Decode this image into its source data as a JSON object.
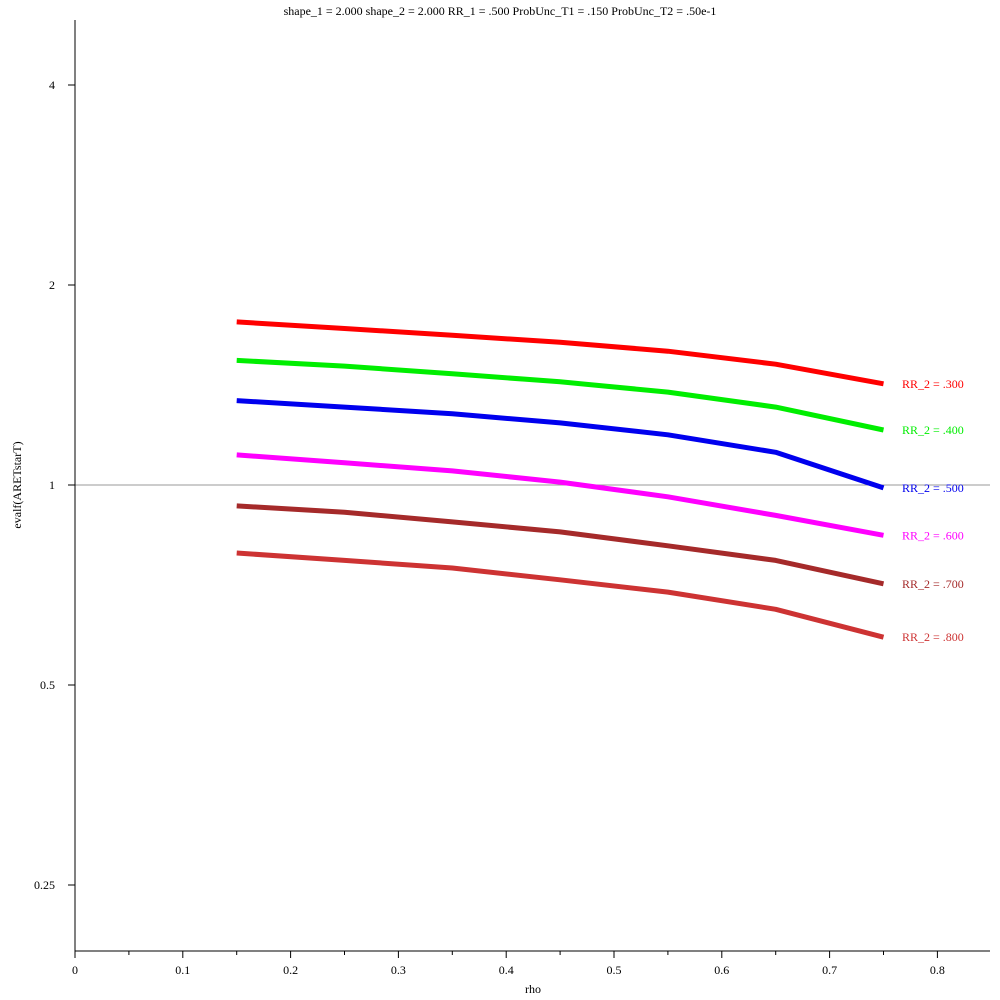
{
  "chart_data": {
    "type": "line",
    "title": "shape_1 = 2.000  shape_2 = 2.000  RR_1 = .500  ProbUnc_T1 = .150  ProbUnc_T2 = .50e-1",
    "xlabel": "rho",
    "ylabel": "evalf(ARETstarT)",
    "xlim": [
      0,
      0.85
    ],
    "ylim": [
      0.2,
      4.7
    ],
    "yscale": "log",
    "reference_line": 1,
    "grid": false,
    "xticks": [
      {
        "value": 0,
        "label": "0"
      },
      {
        "value": 0.1,
        "label": "0.1"
      },
      {
        "value": 0.2,
        "label": "0.2"
      },
      {
        "value": 0.3,
        "label": "0.3"
      },
      {
        "value": 0.4,
        "label": "0.4"
      },
      {
        "value": 0.5,
        "label": "0.5"
      },
      {
        "value": 0.6,
        "label": "0.6"
      },
      {
        "value": 0.7,
        "label": "0.7"
      },
      {
        "value": 0.8,
        "label": "0.8"
      }
    ],
    "yticks": [
      {
        "value": 0.25,
        "label": "0.25"
      },
      {
        "value": 0.5,
        "label": "0.5"
      },
      {
        "value": 1,
        "label": "1"
      },
      {
        "value": 2,
        "label": "2"
      },
      {
        "value": 4,
        "label": "4"
      }
    ],
    "x": [
      0.15,
      0.25,
      0.35,
      0.45,
      0.55,
      0.65,
      0.75
    ],
    "series": [
      {
        "name": "RR_2 = .300",
        "color": "#ff0000",
        "values": [
          1.76,
          1.72,
          1.68,
          1.64,
          1.59,
          1.52,
          1.42
        ]
      },
      {
        "name": "RR_2 = .400",
        "color": "#00ee00",
        "values": [
          1.54,
          1.51,
          1.47,
          1.43,
          1.38,
          1.31,
          1.21
        ]
      },
      {
        "name": "RR_2 = .500",
        "color": "#0000ee",
        "values": [
          1.34,
          1.31,
          1.28,
          1.24,
          1.19,
          1.12,
          0.99
        ]
      },
      {
        "name": "RR_2 = .600",
        "color": "#ff00ff",
        "values": [
          1.11,
          1.08,
          1.05,
          1.01,
          0.96,
          0.9,
          0.84
        ]
      },
      {
        "name": "RR_2 = .700",
        "color": "#a52a2a",
        "values": [
          0.93,
          0.91,
          0.88,
          0.85,
          0.81,
          0.77,
          0.71
        ]
      },
      {
        "name": "RR_2 = .800",
        "color": "#cd3333",
        "values": [
          0.79,
          0.77,
          0.75,
          0.72,
          0.69,
          0.65,
          0.59
        ]
      }
    ]
  }
}
